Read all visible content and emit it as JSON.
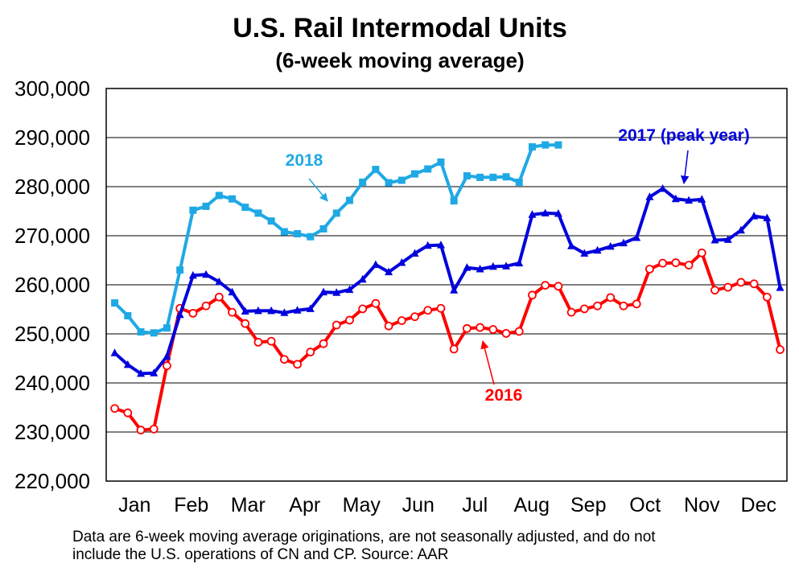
{
  "chart_data": {
    "type": "line",
    "title": "U.S. Rail Intermodal Units",
    "subtitle": "(6-week moving average)",
    "xlabel": "",
    "ylabel": "",
    "ylim": [
      220000,
      300000
    ],
    "yticks": [
      220000,
      230000,
      240000,
      250000,
      260000,
      270000,
      280000,
      290000,
      300000
    ],
    "ytick_labels": [
      "220,000",
      "230,000",
      "240,000",
      "250,000",
      "260,000",
      "270,000",
      "280,000",
      "290,000",
      "300,000"
    ],
    "categories": [
      "Jan",
      "Feb",
      "Mar",
      "Apr",
      "May",
      "Jun",
      "Jul",
      "Aug",
      "Sep",
      "Oct",
      "Nov",
      "Dec"
    ],
    "x_domain": [
      0,
      12
    ],
    "grid": "horizontal",
    "series": [
      {
        "name": "2016",
        "label": "2016",
        "color": "#ff0000",
        "marker": "circle",
        "x": [
          0.15,
          0.38,
          0.61,
          0.84,
          1.07,
          1.3,
          1.53,
          1.76,
          1.99,
          2.22,
          2.45,
          2.68,
          2.91,
          3.14,
          3.37,
          3.6,
          3.83,
          4.06,
          4.29,
          4.52,
          4.75,
          4.98,
          5.21,
          5.44,
          5.67,
          5.9,
          6.13,
          6.36,
          6.59,
          6.82,
          7.05,
          7.28,
          7.51,
          7.74,
          7.97,
          8.2,
          8.43,
          8.66,
          8.89,
          9.12,
          9.35,
          9.58,
          9.81,
          10.04,
          10.27,
          10.5,
          10.73,
          10.96,
          11.19,
          11.42,
          11.65,
          11.88
        ],
        "values": [
          234800,
          233900,
          230400,
          230600,
          243500,
          255200,
          254200,
          255700,
          257500,
          254400,
          252100,
          248300,
          248500,
          244800,
          243800,
          246300,
          248000,
          251800,
          252800,
          255100,
          256200,
          251600,
          252700,
          253500,
          254800,
          255200,
          246900,
          251100,
          251300,
          250900,
          250100,
          250500,
          257900,
          259900,
          259700,
          254400,
          255100,
          255700,
          257400,
          255700,
          256100,
          263200,
          264400,
          264500,
          264000,
          266500,
          258900,
          259500,
          260500,
          260200,
          257500,
          246800
        ]
      },
      {
        "name": "2017 (peak year)",
        "label": "2017 (peak year)",
        "color": "#0000dd",
        "marker": "triangle",
        "x": [
          0.15,
          0.38,
          0.61,
          0.84,
          1.07,
          1.3,
          1.53,
          1.76,
          1.99,
          2.22,
          2.45,
          2.68,
          2.91,
          3.14,
          3.37,
          3.6,
          3.83,
          4.06,
          4.29,
          4.52,
          4.75,
          4.98,
          5.21,
          5.44,
          5.67,
          5.9,
          6.13,
          6.36,
          6.59,
          6.82,
          7.05,
          7.28,
          7.51,
          7.74,
          7.97,
          8.2,
          8.43,
          8.66,
          8.89,
          9.12,
          9.35,
          9.58,
          9.81,
          10.04,
          10.27,
          10.5,
          10.73,
          10.96,
          11.19,
          11.42,
          11.65,
          11.88
        ],
        "values": [
          246100,
          243700,
          241900,
          242000,
          245400,
          253900,
          261900,
          262100,
          260600,
          258500,
          254600,
          254700,
          254700,
          254300,
          254800,
          255100,
          258500,
          258400,
          259000,
          261100,
          264100,
          262600,
          264500,
          266400,
          268000,
          268100,
          258900,
          263500,
          263200,
          263700,
          263800,
          264400,
          274300,
          274600,
          274500,
          267900,
          266400,
          267000,
          267800,
          268500,
          269600,
          277900,
          279600,
          277500,
          277200,
          277400,
          269100,
          269200,
          271100,
          274000,
          273600,
          259400
        ]
      },
      {
        "name": "2018",
        "label": "2018",
        "color": "#1fa9e4",
        "marker": "square",
        "x": [
          0.15,
          0.38,
          0.61,
          0.84,
          1.07,
          1.3,
          1.53,
          1.76,
          1.99,
          2.22,
          2.45,
          2.68,
          2.91,
          3.14,
          3.37,
          3.6,
          3.83,
          4.06,
          4.29,
          4.52,
          4.75,
          4.98,
          5.21,
          5.44,
          5.67,
          5.9,
          6.13,
          6.36,
          6.59,
          6.82,
          7.05,
          7.28,
          7.51,
          7.74,
          7.97
        ],
        "values": [
          256300,
          253700,
          250400,
          250200,
          251200,
          263000,
          275200,
          276000,
          278200,
          277500,
          275800,
          274600,
          273000,
          270800,
          270400,
          269800,
          271400,
          274600,
          277200,
          280900,
          283500,
          280800,
          281300,
          282600,
          283600,
          285000,
          277100,
          282200,
          281900,
          281900,
          282000,
          280900,
          288100,
          288500,
          288500
        ]
      }
    ],
    "annotations": [
      {
        "text": "2018",
        "target_series": "2018",
        "target_x": 4.29
      },
      {
        "text": "2017 (peak year)",
        "target_series": "2017 (peak year)",
        "target_x": 10.04
      },
      {
        "text": "2016",
        "target_series": "2016",
        "target_x": 6.82
      }
    ]
  },
  "footnote": {
    "line1": "Data are 6-week moving average originations, are not seasonally adjusted, and do not",
    "line2": "include the U.S. operations of CN and CP.   Source: AAR"
  }
}
